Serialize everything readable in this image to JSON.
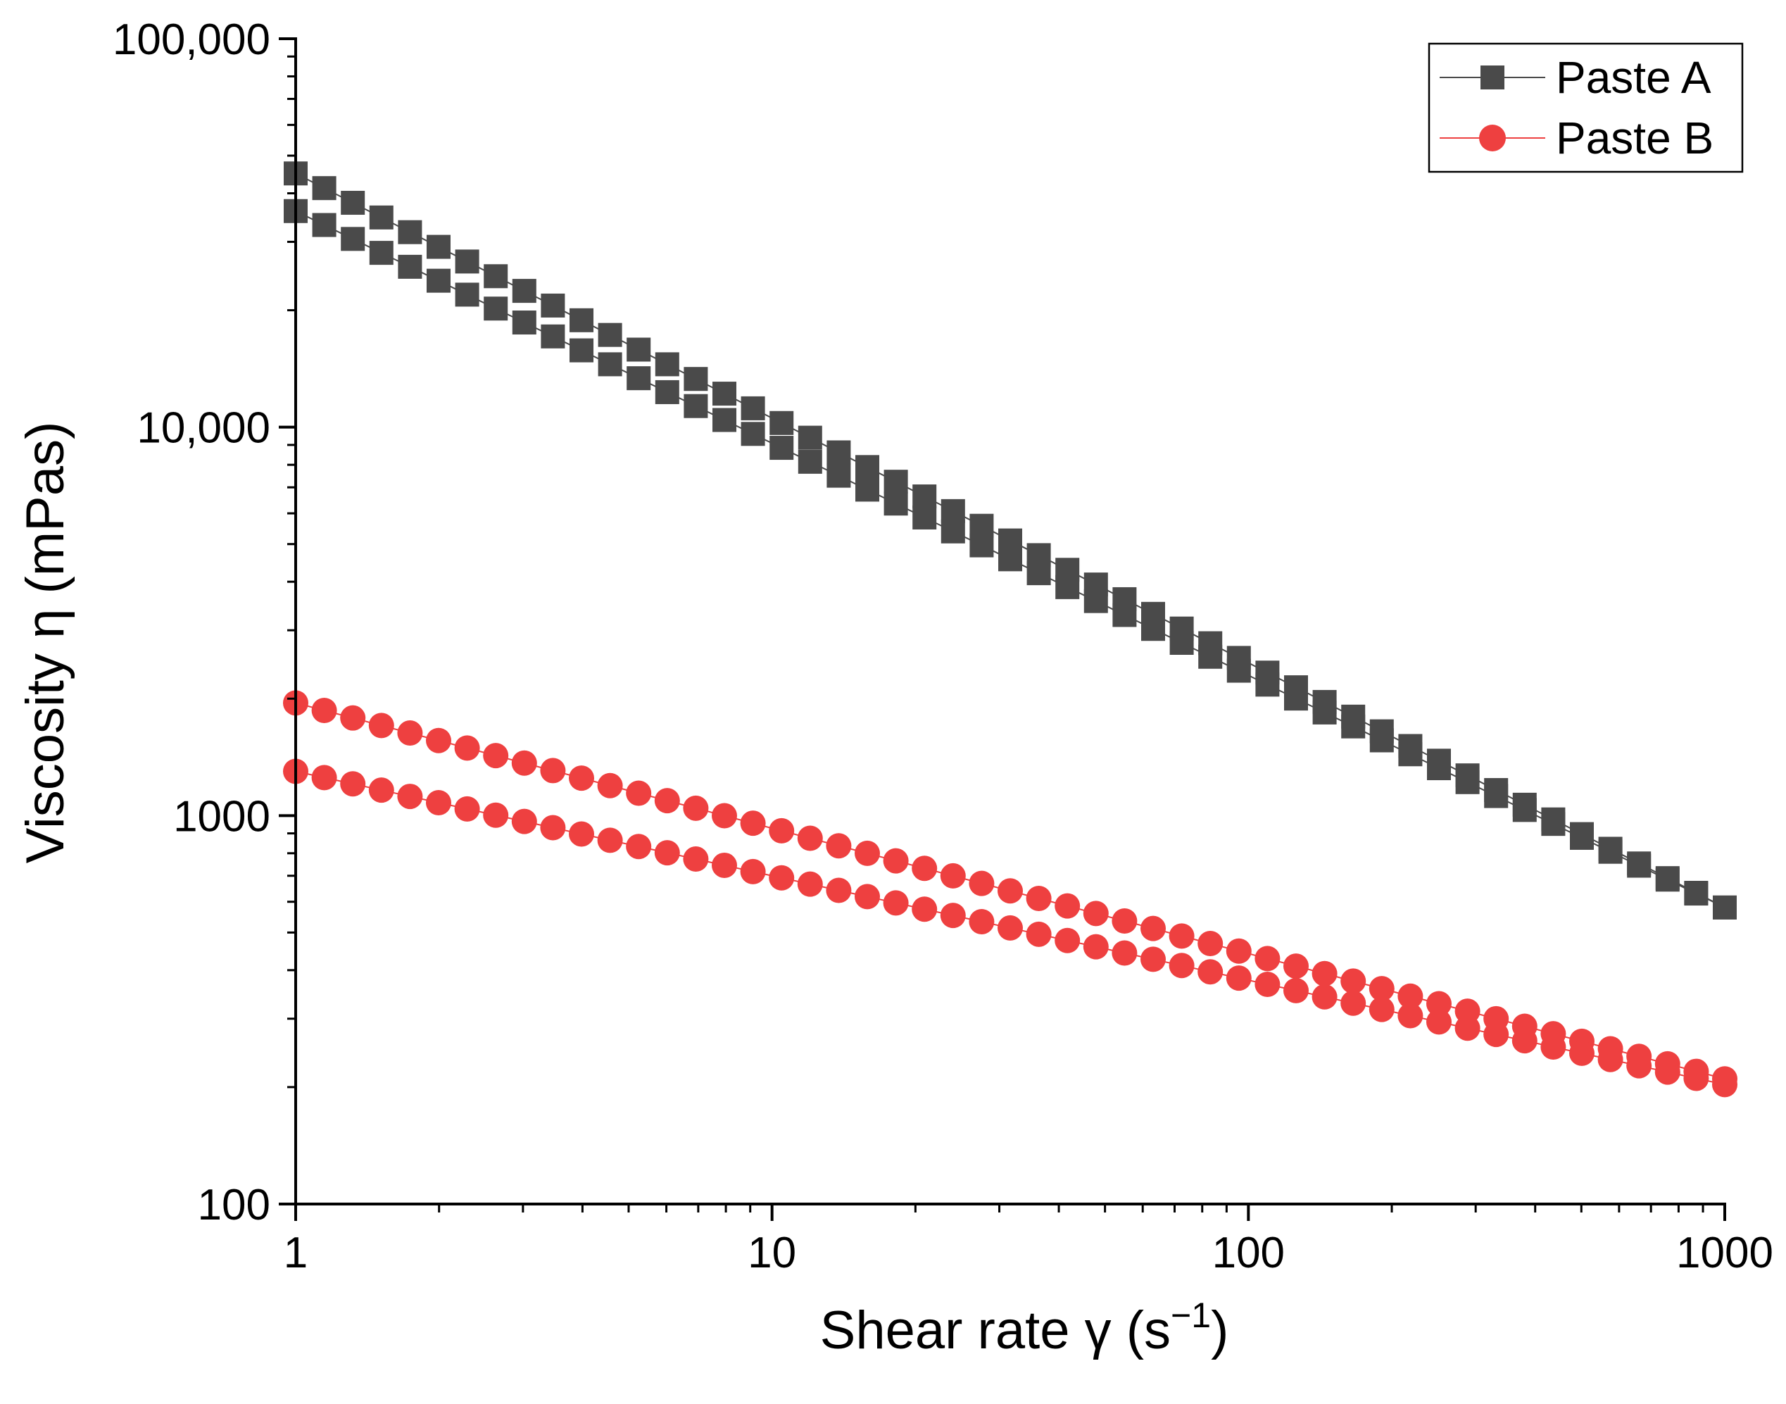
{
  "chart_data": {
    "type": "scatter",
    "title": "",
    "xlabel": "Shear rate γ (s",
    "xlabel_superscript": "−1",
    "xlabel_close": ")",
    "ylabel": "Viscosity η (mPas)",
    "xscale": "log",
    "yscale": "log",
    "xlim": [
      1,
      1000
    ],
    "ylim": [
      100,
      100000
    ],
    "x_ticks": [
      {
        "value": 1,
        "label": "1"
      },
      {
        "value": 10,
        "label": "10"
      },
      {
        "value": 100,
        "label": "100"
      },
      {
        "value": 1000,
        "label": "1000"
      }
    ],
    "y_ticks": [
      {
        "value": 100,
        "label": "100"
      },
      {
        "value": 1000,
        "label": "1000"
      },
      {
        "value": 10000,
        "label": "10,000"
      },
      {
        "value": 100000,
        "label": "100,000"
      }
    ],
    "legend_position": "top-right",
    "series": [
      {
        "name": "Paste A",
        "marker": "square",
        "color": "#4a4a4a",
        "line_color": "#4a4a4a",
        "branches": [
          {
            "name": "upper",
            "y_start": 45000,
            "y_end": 580,
            "n_points": 51
          },
          {
            "name": "lower",
            "y_start": 36000,
            "y_end": 580,
            "n_points": 51
          }
        ]
      },
      {
        "name": "Paste B",
        "marker": "circle",
        "color": "#ee4040",
        "line_color": "#ee4040",
        "branches": [
          {
            "name": "upper",
            "y_start": 1950,
            "y_end": 210,
            "n_points": 51
          },
          {
            "name": "lower",
            "y_start": 1300,
            "y_end": 203,
            "n_points": 51
          }
        ]
      }
    ]
  }
}
